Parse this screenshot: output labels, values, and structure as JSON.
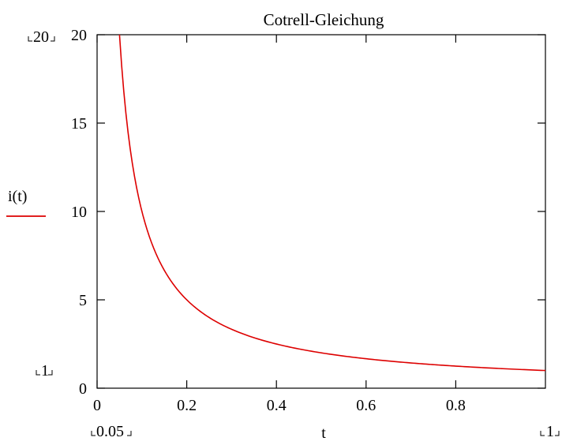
{
  "chart_data": {
    "type": "line",
    "title": "Cotrell-Gleichung",
    "xlabel": "t",
    "legend": {
      "label": "i(t)",
      "placement": "left",
      "color": "#dd0000"
    },
    "xlim": [
      0,
      1
    ],
    "ylim": [
      0,
      20
    ],
    "x_ticks": [
      "0",
      "0.2",
      "0.4",
      "0.6",
      "0.8"
    ],
    "y_ticks": [
      "0",
      "5",
      "10",
      "15",
      "20"
    ],
    "range_markers": {
      "x_min": "0.05",
      "x_max": "1",
      "y_max": "20",
      "y_min": "1"
    },
    "series": [
      {
        "name": "i(t)",
        "color": "#dd0000",
        "function": "1/t",
        "x": [
          0.05,
          0.06,
          0.07,
          0.08,
          0.09,
          0.1,
          0.12,
          0.14,
          0.16,
          0.18,
          0.2,
          0.25,
          0.3,
          0.35,
          0.4,
          0.45,
          0.5,
          0.55,
          0.6,
          0.65,
          0.7,
          0.75,
          0.8,
          0.85,
          0.9,
          0.95,
          1.0
        ],
        "y": [
          20,
          16.67,
          14.29,
          12.5,
          11.11,
          10,
          8.33,
          7.14,
          6.25,
          5.56,
          5,
          4,
          3.33,
          2.86,
          2.5,
          2.22,
          2,
          1.82,
          1.67,
          1.54,
          1.43,
          1.33,
          1.25,
          1.18,
          1.11,
          1.05,
          1
        ]
      }
    ]
  }
}
